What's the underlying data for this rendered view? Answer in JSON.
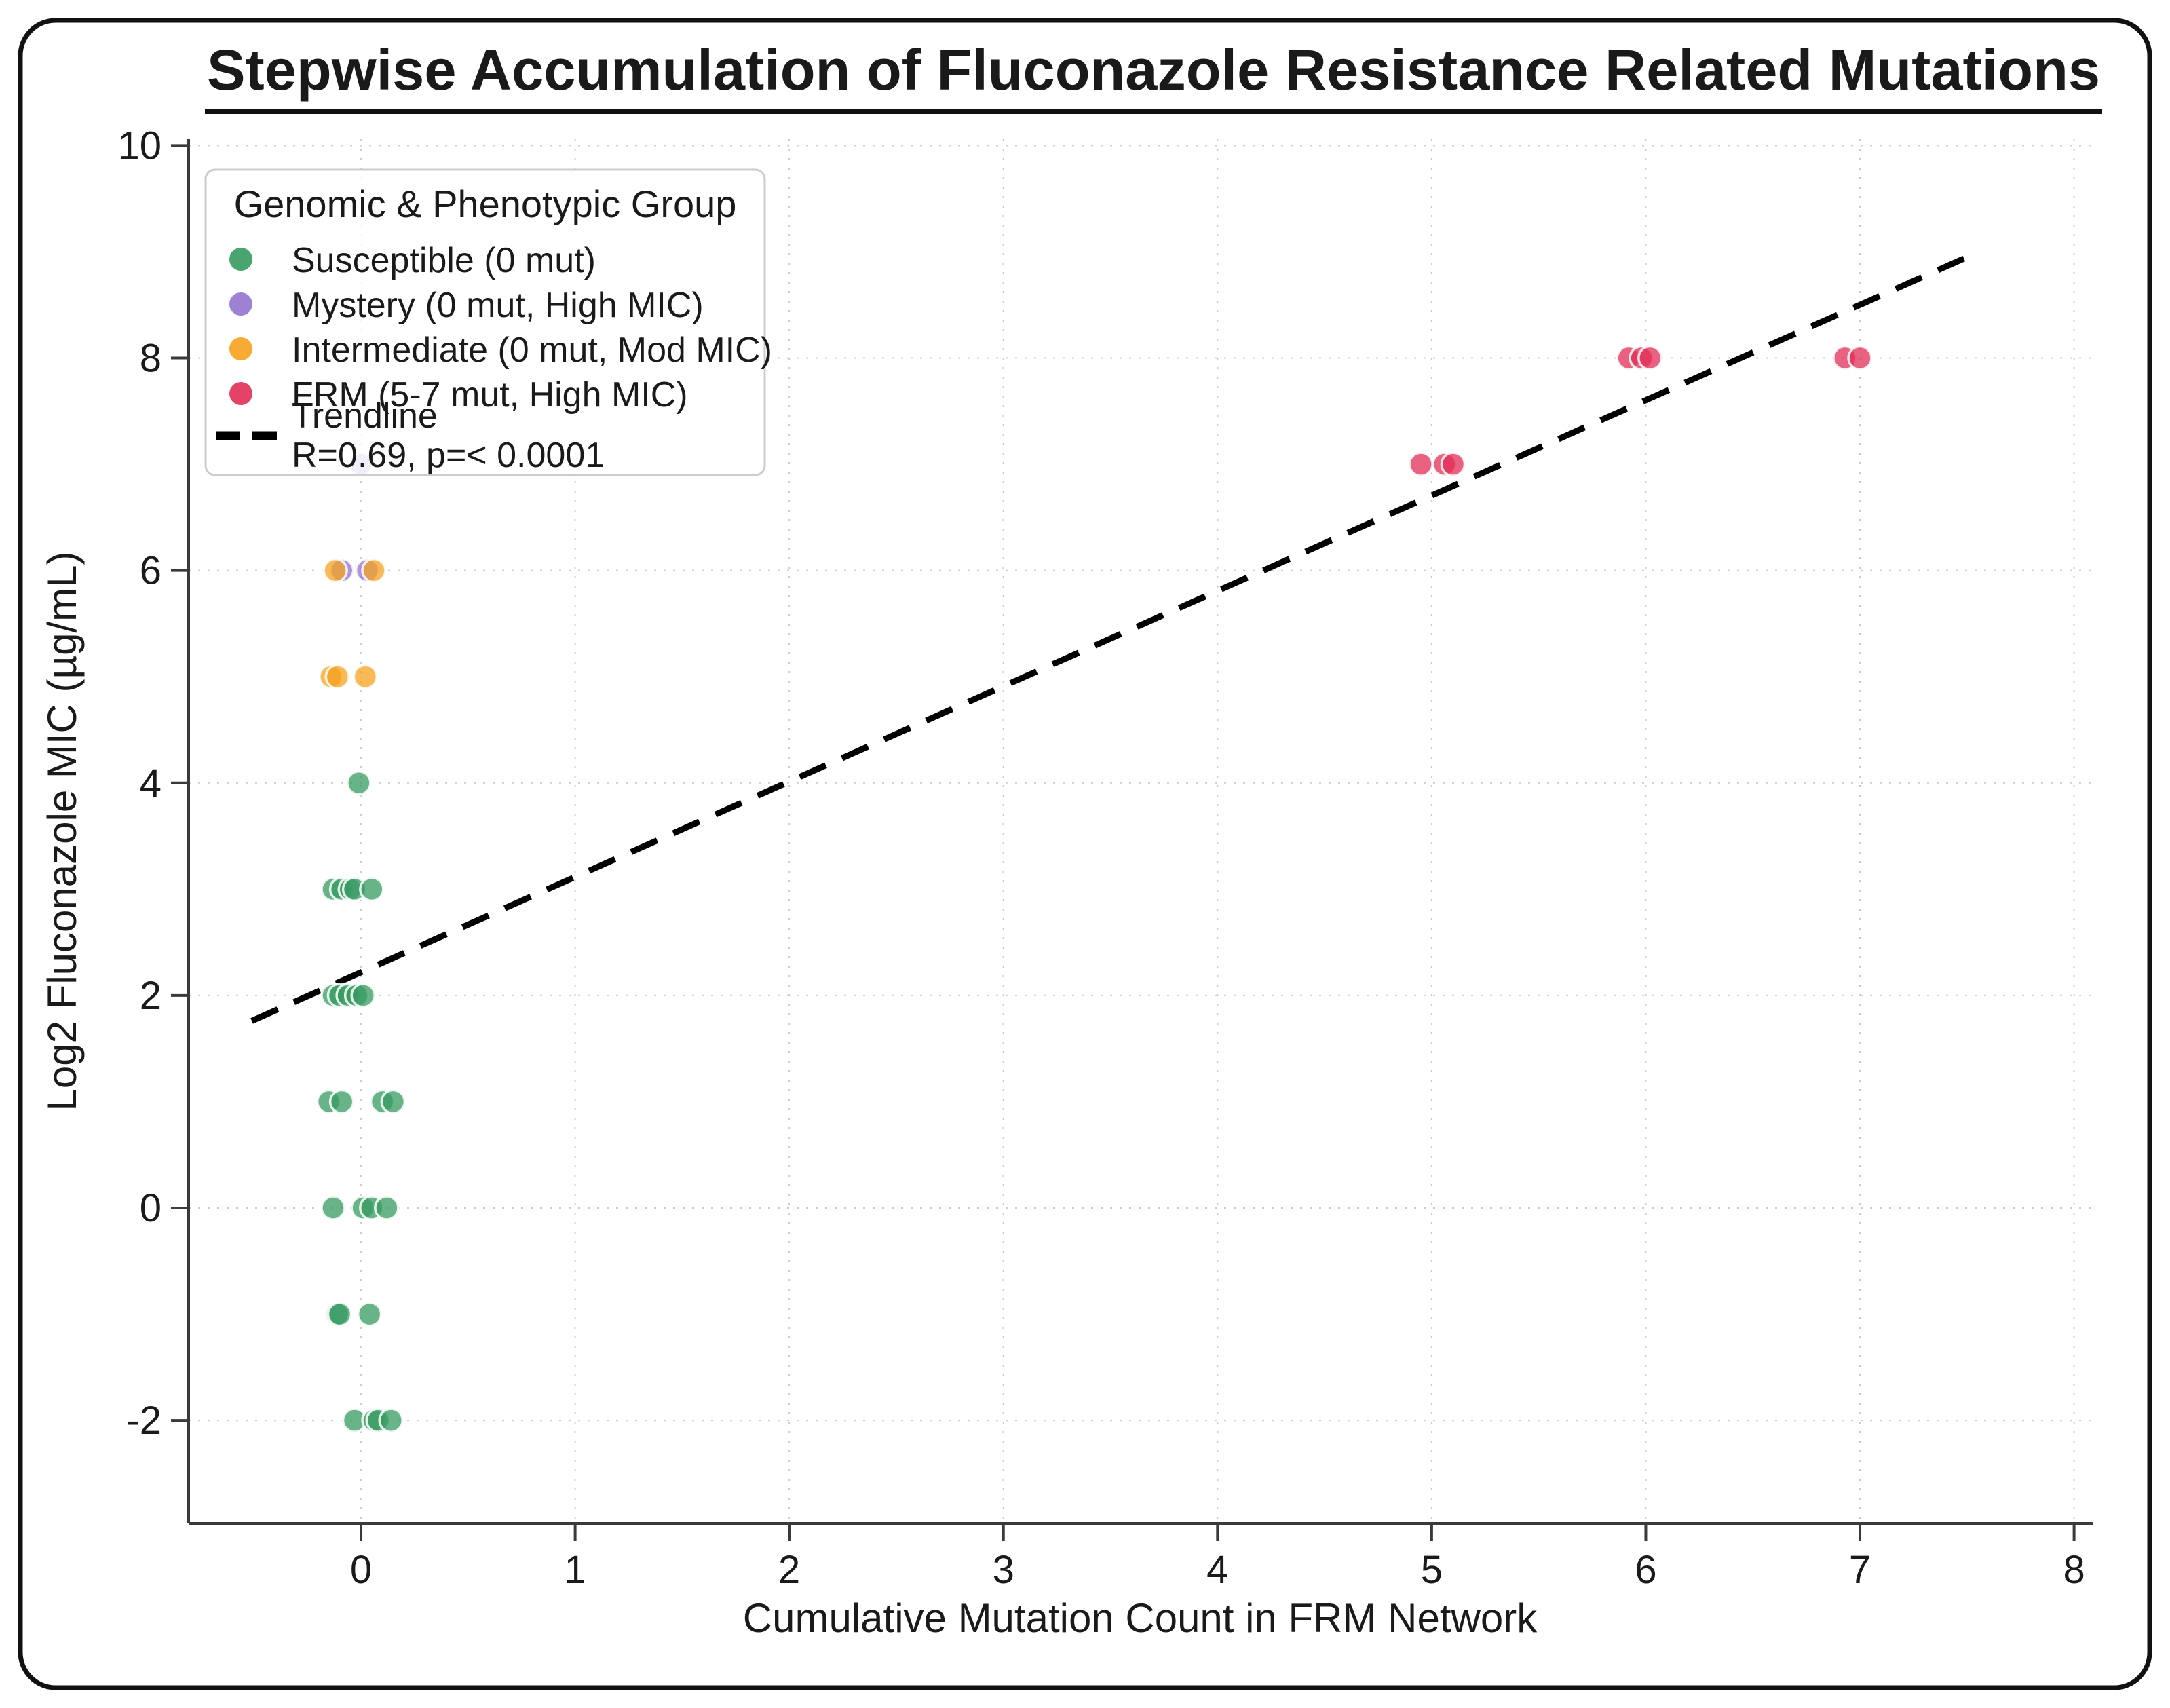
{
  "figure": {
    "background": "#ffffff",
    "border_color": "#111111"
  },
  "chart_data": {
    "type": "scatter",
    "title": "Stepwise Accumulation of Fluconazole Resistance Related Mutations",
    "xlabel": "Cumulative Mutation Count in FRM Network",
    "ylabel": "Log2 Fluconazole MIC (µg/mL)",
    "xlim": [
      -0.805,
      8.09
    ],
    "ylim": [
      -2.97,
      10.06
    ],
    "xticks": [
      0,
      1,
      2,
      3,
      4,
      5,
      6,
      7,
      8
    ],
    "yticks": [
      -2,
      0,
      2,
      4,
      6,
      8,
      10
    ],
    "grid": {
      "show": true,
      "style": "dotted",
      "color": "#cccccc"
    },
    "axis_color": "#3a3a3a",
    "legend": {
      "title": "Genomic & Phenotypic Group",
      "position": "upper left",
      "trendline_label": "Trendline",
      "trendline_sublabel": "R=0.69, p=< 0.0001"
    },
    "series": [
      {
        "name": "Susceptible (0 mut)",
        "color": "#359a60",
        "points": [
          [
            -0.01,
            4
          ],
          [
            -0.13,
            3
          ],
          [
            -0.09,
            3
          ],
          [
            -0.05,
            3
          ],
          [
            -0.03,
            3
          ],
          [
            0.05,
            3
          ],
          [
            -0.13,
            2
          ],
          [
            -0.1,
            2
          ],
          [
            -0.06,
            2
          ],
          [
            -0.02,
            2
          ],
          [
            0.01,
            2
          ],
          [
            -0.15,
            1
          ],
          [
            -0.09,
            1
          ],
          [
            0.1,
            1
          ],
          [
            0.15,
            1
          ],
          [
            -0.13,
            0
          ],
          [
            0.01,
            0
          ],
          [
            0.05,
            0
          ],
          [
            0.12,
            0
          ],
          [
            -0.11,
            -1
          ],
          [
            -0.1,
            -1
          ],
          [
            0.04,
            -1
          ],
          [
            -0.03,
            -2
          ],
          [
            0.06,
            -2
          ],
          [
            0.08,
            -2
          ],
          [
            0.14,
            -2
          ]
        ]
      },
      {
        "name": "Mystery (0 mut, High MIC)",
        "color": "#9173cf",
        "points": [
          [
            0.0,
            7
          ],
          [
            -0.09,
            6
          ],
          [
            0.03,
            6
          ]
        ]
      },
      {
        "name": "Intermediate (0 mut, Mod MIC)",
        "color": "#f6a21d",
        "points": [
          [
            -0.12,
            6
          ],
          [
            0.06,
            6
          ],
          [
            -0.14,
            5
          ],
          [
            -0.11,
            5
          ],
          [
            0.02,
            5
          ]
        ]
      },
      {
        "name": "FRM (5-7 mut, High MIC)",
        "color": "#e22d57",
        "points": [
          [
            4.95,
            7
          ],
          [
            5.06,
            7
          ],
          [
            5.1,
            7
          ],
          [
            5.92,
            8
          ],
          [
            5.98,
            8
          ],
          [
            6.02,
            8
          ],
          [
            6.93,
            8
          ],
          [
            7.0,
            8
          ]
        ]
      }
    ],
    "trendline": {
      "x": [
        -0.51,
        7.49
      ],
      "y": [
        1.76,
        8.94
      ],
      "style": "dashed",
      "color": "#000000",
      "R": "0.69",
      "p": "< 0.0001"
    }
  }
}
